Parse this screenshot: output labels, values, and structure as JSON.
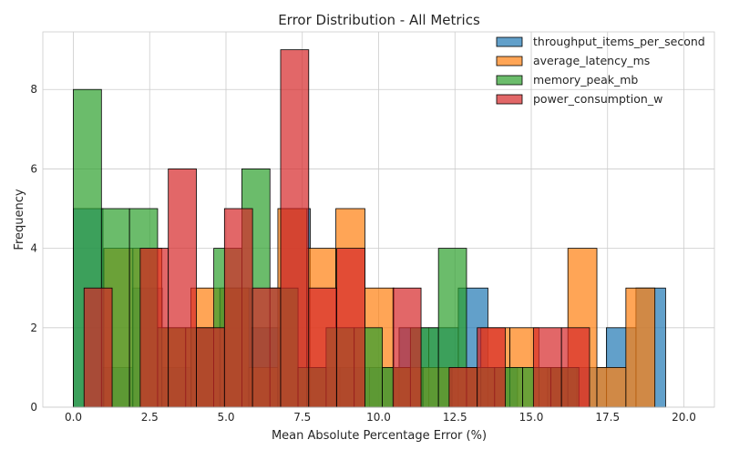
{
  "chart_data": {
    "type": "histogram",
    "title": "Error Distribution - All Metrics",
    "xlabel": "Mean Absolute Percentage Error (%)",
    "ylabel": "Frequency",
    "xlim": [
      -1.0,
      21.0
    ],
    "ylim": [
      0,
      9.45
    ],
    "x_ticks": [
      0.0,
      2.5,
      5.0,
      7.5,
      10.0,
      12.5,
      15.0,
      17.5,
      20.0
    ],
    "x_tick_labels": [
      "0.0",
      "2.5",
      "5.0",
      "7.5",
      "10.0",
      "12.5",
      "15.0",
      "17.5",
      "20.0"
    ],
    "y_ticks": [
      0,
      2,
      4,
      6,
      8
    ],
    "y_tick_labels": [
      "0",
      "2",
      "4",
      "6",
      "8"
    ],
    "grid": true,
    "legend_position": "top-right",
    "series": [
      {
        "name": "throughput_items_per_second",
        "color": "#1f77b4",
        "bin_start": 0.0,
        "bin_width": 0.97,
        "counts": [
          5,
          1,
          3,
          1,
          2,
          3,
          2,
          5,
          1,
          1,
          1,
          2,
          2,
          3,
          1,
          0,
          1,
          1,
          2,
          3
        ]
      },
      {
        "name": "average_latency_ms",
        "color": "#ff7f0e",
        "bin_start": 1.0,
        "bin_width": 0.95,
        "counts": [
          4,
          4,
          2,
          3,
          3,
          1,
          5,
          4,
          5,
          3,
          1,
          1,
          1,
          2,
          2,
          1,
          4,
          1,
          3,
          0
        ]
      },
      {
        "name": "memory_peak_mb",
        "color": "#2ca02c",
        "bin_start": 0.0,
        "bin_width": 0.92,
        "counts": [
          8,
          5,
          5,
          2,
          2,
          4,
          6,
          3,
          1,
          2,
          2,
          1,
          2,
          4,
          1,
          1,
          1,
          1,
          0,
          0
        ]
      },
      {
        "name": "power_consumption_w",
        "color": "#d62728",
        "bin_start": 0.35,
        "bin_width": 0.92,
        "counts": [
          3,
          0,
          4,
          6,
          2,
          5,
          3,
          9,
          3,
          4,
          0,
          3,
          0,
          1,
          2,
          0,
          2,
          2,
          0,
          0
        ]
      }
    ]
  }
}
